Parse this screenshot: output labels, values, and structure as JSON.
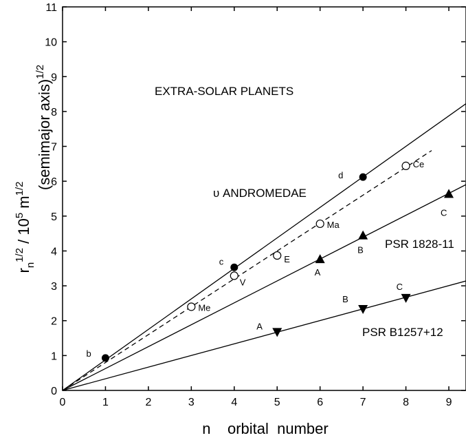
{
  "chart_data": {
    "type": "scatter",
    "title": "",
    "xlabel": "n    orbital  number",
    "ylabel_main": "r",
    "ylabel_sub": "n",
    "ylabel_sup1": "1/2",
    "ylabel_mid": " / 10",
    "ylabel_sup2": "5",
    "ylabel_unit": " m",
    "ylabel_sup3": "1/2",
    "ylabel_right": "(semimajor axis)",
    "ylabel_right_sup": "1/2",
    "xlim": [
      0,
      9.4
    ],
    "ylim": [
      0,
      11
    ],
    "xticks": [
      0,
      1,
      2,
      3,
      4,
      5,
      6,
      7,
      8,
      9
    ],
    "yticks": [
      0,
      1,
      2,
      3,
      4,
      5,
      6,
      7,
      8,
      9,
      10,
      11
    ],
    "annotations": {
      "heading": "EXTRA-SOLAR PLANETS",
      "andromedae": "υ ANDROMEDAE",
      "psr1828": "PSR 1828-11",
      "psrb1257": "PSR B1257+12"
    },
    "series": [
      {
        "name": "υ ANDROMEDAE",
        "marker": "filled-circle",
        "fit_slope": 0.875,
        "fit_line": "solid",
        "points": [
          {
            "x": 1,
            "y": 0.93,
            "label": "b"
          },
          {
            "x": 4,
            "y": 3.53,
            "label": "c"
          },
          {
            "x": 7,
            "y": 6.12,
            "label": "d"
          }
        ]
      },
      {
        "name": "",
        "marker": "open-circle",
        "fit_slope": 0.8,
        "fit_line": "dashed",
        "points": [
          {
            "x": 3,
            "y": 2.4,
            "label": "Me"
          },
          {
            "x": 4,
            "y": 3.29,
            "label": "V"
          },
          {
            "x": 5,
            "y": 3.87,
            "label": "E"
          },
          {
            "x": 6,
            "y": 4.78,
            "label": "Ma"
          },
          {
            "x": 8,
            "y": 6.44,
            "label": "Ce"
          }
        ]
      },
      {
        "name": "PSR 1828-11",
        "marker": "triangle-up",
        "fit_slope": 0.628,
        "fit_line": "solid",
        "points": [
          {
            "x": 6,
            "y": 3.77,
            "label": "A"
          },
          {
            "x": 7,
            "y": 4.45,
            "label": "B"
          },
          {
            "x": 9,
            "y": 5.64,
            "label": "C"
          }
        ]
      },
      {
        "name": "PSR B1257+12",
        "marker": "triangle-down",
        "fit_slope": 0.334,
        "fit_line": "solid",
        "points": [
          {
            "x": 5,
            "y": 1.67,
            "label": "A"
          },
          {
            "x": 7,
            "y": 2.33,
            "label": "B"
          },
          {
            "x": 8,
            "y": 2.65,
            "label": "C"
          }
        ]
      }
    ]
  }
}
